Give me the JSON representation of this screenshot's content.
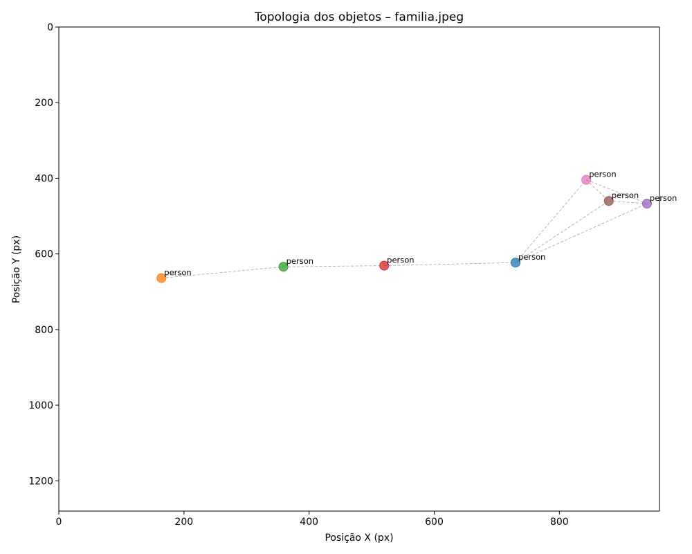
{
  "chart_data": {
    "type": "scatter",
    "title": "Topologia dos objetos – familia.jpeg",
    "xlabel": "Posição X (px)",
    "ylabel": "Posição Y (px)",
    "xlim": [
      0,
      960
    ],
    "ylim": [
      1280,
      0
    ],
    "y_inverted": true,
    "xticks": [
      0,
      200,
      400,
      600,
      800
    ],
    "yticks": [
      0,
      200,
      400,
      600,
      800,
      1000,
      1200
    ],
    "grid": false,
    "points": [
      {
        "label": "person",
        "x": 730,
        "y": 623,
        "color": "#1f77b4"
      },
      {
        "label": "person",
        "x": 164,
        "y": 664,
        "color": "#ff7f0e"
      },
      {
        "label": "person",
        "x": 359,
        "y": 634,
        "color": "#2ca02c"
      },
      {
        "label": "person",
        "x": 520,
        "y": 631,
        "color": "#d62728"
      },
      {
        "label": "person",
        "x": 940,
        "y": 467,
        "color": "#9467bd"
      },
      {
        "label": "person",
        "x": 879,
        "y": 460,
        "color": "#8c564b"
      },
      {
        "label": "person",
        "x": 843,
        "y": 404,
        "color": "#e377c2"
      }
    ],
    "edges": [
      [
        1,
        2
      ],
      [
        2,
        3
      ],
      [
        3,
        0
      ],
      [
        0,
        6
      ],
      [
        0,
        5
      ],
      [
        0,
        4
      ],
      [
        6,
        5
      ],
      [
        6,
        4
      ],
      [
        5,
        4
      ]
    ],
    "edge_color": "#aaaaaa"
  }
}
